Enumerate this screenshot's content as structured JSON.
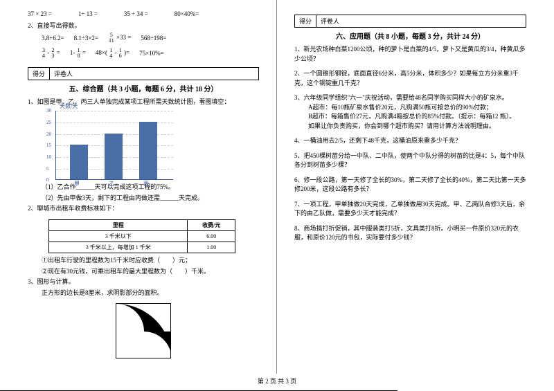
{
  "left": {
    "topEqRow1": [
      "37 × 23 =",
      "1÷ 13 =",
      "35 ÷ 34 =",
      "80×40%="
    ],
    "q2": "2、直接写出得数。",
    "eqRow2": [
      "3.8+6.2=",
      "8.1÷3×2="
    ],
    "eqRow2b": "×33 =",
    "eqRow2c": "568÷198=",
    "fracRow": [
      "=",
      "=",
      "48×(",
      ")=",
      "75×10%="
    ],
    "f": {
      "a1": "3",
      "a2": "4",
      "b1": "2",
      "b2": "3",
      "c1": "1",
      "c2": "8",
      "d1": "5",
      "d2": "11",
      "e1": "1",
      "e2": "4",
      "f1": "1",
      "f2": "6"
    },
    "score": {
      "l": "得分",
      "r": "评卷人"
    },
    "section5": "五、综合题（共 3 小题，每题 6 分，共计 18 分）",
    "q51": "1、如图是甲、乙、丙三人单独完成某项工程所需天数统计图，看图填空：",
    "chart": {
      "ylabel": "天数/天",
      "yticks": [
        0,
        5,
        10,
        15,
        20,
        25,
        30
      ],
      "bars": [
        {
          "label": "甲",
          "value": 15,
          "color": "#4a6fa8"
        },
        {
          "label": "乙",
          "value": 20,
          "color": "#4a6fa8"
        },
        {
          "label": "丙",
          "value": 25,
          "color": "#4a6fa8"
        }
      ],
      "ymax": 30
    },
    "q51a": "（1）乙合作______天可以完成这项工程的75%。",
    "q51b": "（2）先由甲做3天，剩下的工程由丙做还需______天完成。",
    "q52": "2、聊城市出租车收费标准如下：",
    "table": {
      "head": [
        "里程",
        "收费/元"
      ],
      "rows": [
        [
          "3 千米以下",
          "6.00"
        ],
        [
          "3 千米以上，每增加 1 千米",
          "1.00"
        ]
      ]
    },
    "q52a": "①出租车行驶的里程数为15千米时应收费（　　）元；",
    "q52b": "②现在有30元钱，可乘出租车的最大里程数为（　　）千米。",
    "q53": "3、图形与计算。",
    "q53a": "正方形的边长是8厘米，求阴影部分的面积。"
  },
  "right": {
    "score": {
      "l": "得分",
      "r": "评卷人"
    },
    "section6": "六、应用题（共 8 小题，每题 3 分，共计 24 分）",
    "q1": "1、新光农场种白菜1200公顷，种的萝卜是白菜的4/5，萝卜又是黄瓜的3/4，种黄瓜多少公顷？",
    "q2": "2、一个圆锥形钢锭，底面直径6分米，高5分米，体积多少？如果每立方分米重3千克，这个钢锭重几千克？",
    "q3": "3、六年级同学组织\"六一\"庆祝活动，需要给48名同学购买同样大小的矿泉水。",
    "q3a": "A超市：每10瓶矿泉水售价20元，凡购满50瓶可按总价的90%付款；",
    "q3b": "B超市：每箱售价27元，凡购满4箱按总价的85%付款。（提示：每箱12 瓶）。",
    "q3c": "如果让你负责购买，你会到哪个超市购买？请用计算方法说明理由。",
    "q4": "4、一桶油用去2/5，还剩下48千克，这桶油原来重多少千克？",
    "q5": "5、把450棵树苗分给一中队、二中队，使两个中队分得的树苗的比是4：5，每个中队各分到树苗多少棵？",
    "q6": "6、修一段公路，第一天修了全长的30%，第二天修了全长的40%，第二天比第一天多修200米，这段公路有多长？",
    "q7": "7、一项工程，甲单独做20天完成，乙单独做用30天完成。甲、乙两队合修3天后，余下的由乙队做，需要多少天才能完成？",
    "q8": "8、商场搞打折促销，其中服装类打5折，文具类打8折。小明买一件原价320元的衣服，和原价120元的书包，实际要付多少钱？"
  },
  "footer": "第 2 页 共 3 页"
}
